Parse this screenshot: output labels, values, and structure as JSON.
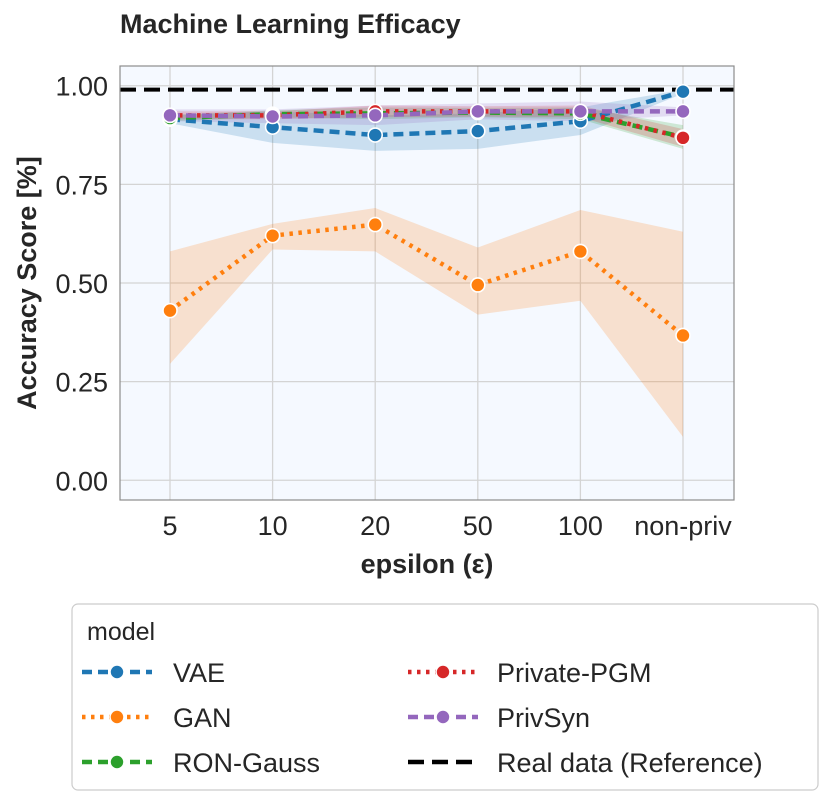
{
  "chart_data": {
    "type": "line",
    "title": "Machine Learning Efficacy",
    "xlabel": "epsilon (ε)",
    "ylabel": "Accuracy Score [%]",
    "categories": [
      "5",
      "10",
      "20",
      "50",
      "100",
      "non-priv"
    ],
    "ylim": [
      -0.05,
      1.05
    ],
    "yticks": [
      "0.00",
      "0.25",
      "0.50",
      "0.75",
      "1.00"
    ],
    "ytick_values": [
      0.0,
      0.25,
      0.5,
      0.75,
      1.0
    ],
    "grid": true,
    "legend_title": "model",
    "legend_position": "bottom",
    "reference": {
      "name": "Real data (Reference)",
      "value": 0.99,
      "color": "#000000"
    },
    "series": [
      {
        "name": "VAE",
        "color": "#1f77b4",
        "dash": "dashed",
        "values": [
          0.915,
          0.895,
          0.875,
          0.885,
          0.91,
          0.985
        ],
        "lower": [
          0.905,
          0.855,
          0.835,
          0.84,
          0.875,
          0.98
        ],
        "upper": [
          0.925,
          0.935,
          0.925,
          0.93,
          0.945,
          0.99
        ]
      },
      {
        "name": "GAN",
        "color": "#ff7f0e",
        "dash": "dotted",
        "values": [
          0.43,
          0.62,
          0.648,
          0.495,
          0.58,
          0.367
        ],
        "lower": [
          0.295,
          0.585,
          0.58,
          0.42,
          0.455,
          0.11
        ],
        "upper": [
          0.58,
          0.65,
          0.69,
          0.59,
          0.685,
          0.63
        ]
      },
      {
        "name": "RON-Gauss",
        "color": "#2ca02c",
        "dash": "dashed",
        "values": [
          0.918,
          0.928,
          0.93,
          0.932,
          0.93,
          0.87
        ],
        "lower": [
          0.91,
          0.92,
          0.915,
          0.92,
          0.915,
          0.84
        ],
        "upper": [
          0.926,
          0.938,
          0.945,
          0.944,
          0.945,
          0.9
        ]
      },
      {
        "name": "Private-PGM",
        "color": "#d62728",
        "dash": "dotted",
        "values": [
          0.925,
          0.925,
          0.935,
          0.935,
          0.935,
          0.868
        ],
        "lower": [
          0.915,
          0.915,
          0.92,
          0.922,
          0.92,
          0.845
        ],
        "upper": [
          0.935,
          0.935,
          0.95,
          0.948,
          0.95,
          0.89
        ]
      },
      {
        "name": "PrivSyn",
        "color": "#9467bd",
        "dash": "dashed",
        "values": [
          0.925,
          0.922,
          0.925,
          0.935,
          0.935,
          0.935
        ],
        "lower": [
          0.91,
          0.905,
          0.9,
          0.915,
          0.91,
          0.925
        ],
        "upper": [
          0.94,
          0.94,
          0.95,
          0.955,
          0.96,
          0.945
        ]
      }
    ]
  }
}
